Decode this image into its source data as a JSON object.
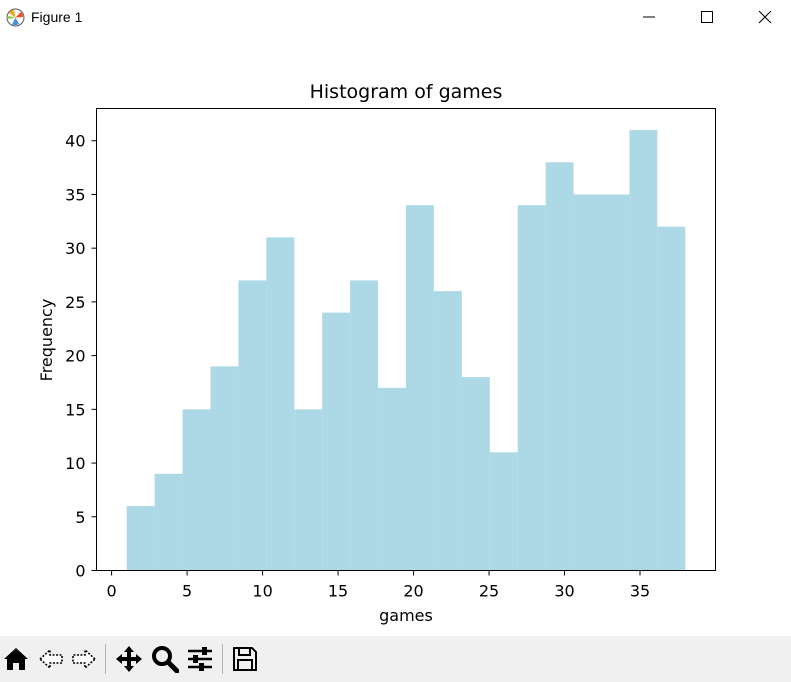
{
  "window": {
    "title": "Figure 1",
    "icon": "matplotlib-logo-icon",
    "controls": [
      "minimize-icon",
      "maximize-icon",
      "close-icon"
    ]
  },
  "toolbar": {
    "tools": [
      "home-icon",
      "back-icon",
      "forward-icon",
      "pan-icon",
      "zoom-icon",
      "configure-subplots-icon",
      "save-icon"
    ]
  },
  "colors": {
    "bars": "#add8e6",
    "axes": "#000000",
    "titlebar": "#ffffff",
    "toolbar": "#f0f0f0"
  },
  "chart_data": {
    "type": "bar",
    "title": "Histogram of games",
    "xlabel": "games",
    "ylabel": "Frequency",
    "xlim": [
      -1,
      40
    ],
    "ylim": [
      0,
      43
    ],
    "xticks": [
      0,
      5,
      10,
      15,
      20,
      25,
      30,
      35
    ],
    "yticks": [
      0,
      5,
      10,
      15,
      20,
      25,
      30,
      35,
      40
    ],
    "bin_edges": [
      1,
      2.85,
      4.7,
      6.55,
      8.4,
      10.25,
      12.1,
      13.95,
      15.8,
      17.65,
      19.5,
      21.35,
      23.2,
      25.05,
      26.9,
      28.75,
      30.6,
      32.45,
      34.3,
      36.15,
      38
    ],
    "values": [
      6,
      9,
      15,
      19,
      27,
      31,
      15,
      24,
      27,
      17,
      34,
      26,
      18,
      11,
      34,
      38,
      35,
      35,
      41,
      32
    ],
    "grid": false,
    "legend": "none"
  }
}
